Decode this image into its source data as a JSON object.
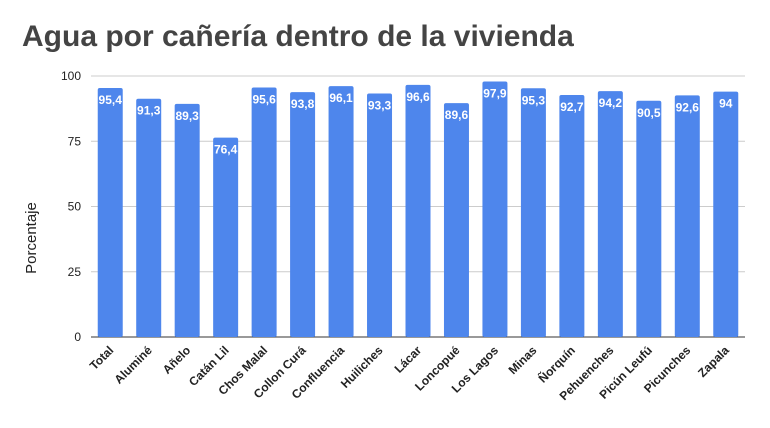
{
  "chart_data": {
    "type": "bar",
    "title": "Agua por cañería dentro de la vivienda",
    "xlabel": "",
    "ylabel": "Porcentaje",
    "ylim": [
      0,
      100
    ],
    "yticks": [
      0,
      25,
      50,
      75,
      100
    ],
    "grid": true,
    "legend": "none",
    "bar_color": "#4e86ec",
    "categories": [
      "Total",
      "Aluminé",
      "Añelo",
      "Catán Lil",
      "Chos Malal",
      "Collon Curá",
      "Confluencia",
      "Huiliches",
      "Lácar",
      "Loncopué",
      "Los Lagos",
      "Minas",
      "Ñorquín",
      "Pehuenches",
      "Picún Leufú",
      "Picunches",
      "Zapala"
    ],
    "values": [
      95.4,
      91.3,
      89.3,
      76.4,
      95.6,
      93.8,
      96.1,
      93.3,
      96.6,
      89.6,
      97.9,
      95.3,
      92.7,
      94.2,
      90.5,
      92.6,
      94
    ],
    "value_labels": [
      "95,4",
      "91,3",
      "89,3",
      "76,4",
      "95,6",
      "93,8",
      "96,1",
      "93,3",
      "96,6",
      "89,6",
      "97,9",
      "95,3",
      "92,7",
      "94,2",
      "90,5",
      "92,6",
      "94"
    ]
  }
}
